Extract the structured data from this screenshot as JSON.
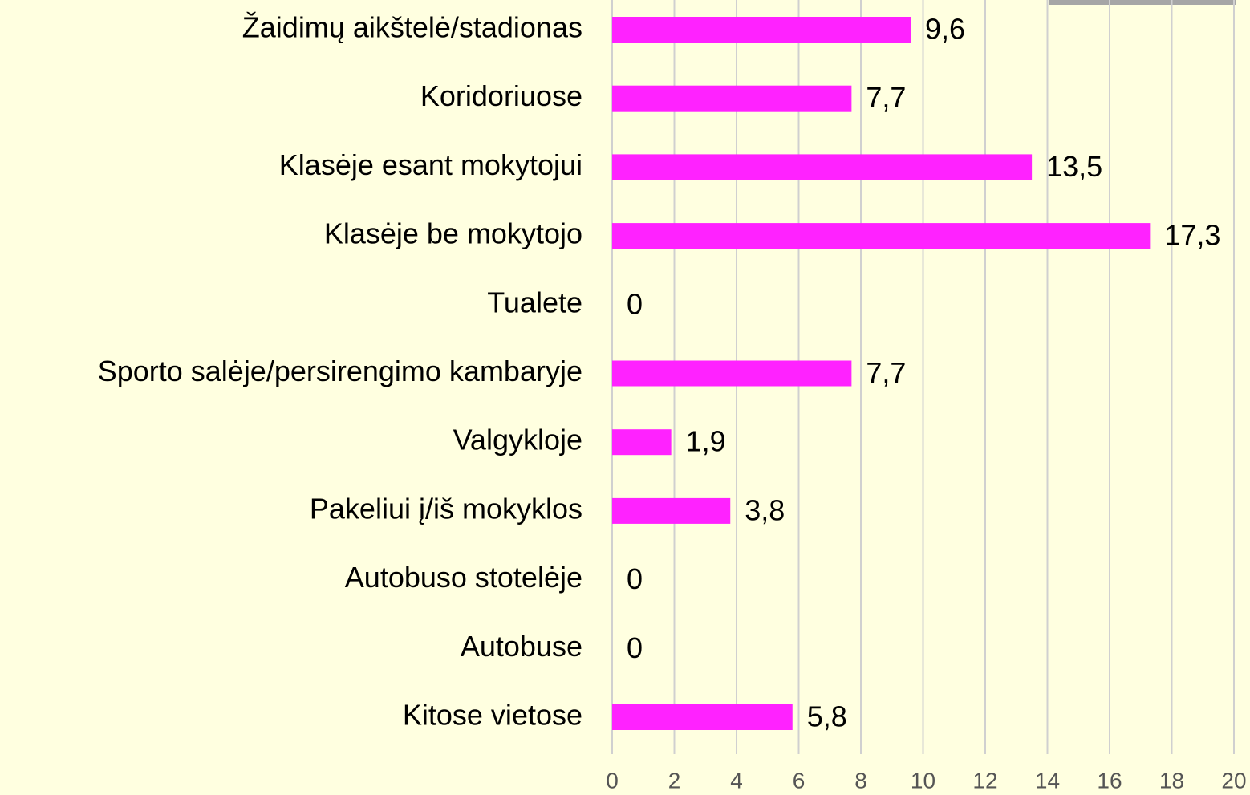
{
  "chart_data": {
    "type": "horizontal_bar",
    "categories": [
      "Žaidimų aikštelė/stadionas",
      "Koridoriuose",
      "Klasėje esant mokytojui",
      "Klasėje be mokytojo",
      "Tualete",
      "Sporto salėje/persirengimo kambaryje",
      "Valgykloje",
      "Pakeliui į/iš mokyklos",
      "Autobuso stotelėje",
      "Autobuse",
      "Kitose vietose"
    ],
    "values": [
      9.6,
      7.7,
      13.5,
      17.3,
      0,
      7.7,
      1.9,
      3.8,
      0,
      0,
      5.8
    ],
    "value_labels": [
      "9,6",
      "7,7",
      "13,5",
      "17,3",
      "0",
      "7,7",
      "1,9",
      "3,8",
      "0",
      "0",
      "5,8"
    ],
    "color": "#ff22ff",
    "xlim": [
      0,
      20
    ],
    "xticks": [
      0,
      2,
      4,
      6,
      8,
      10,
      12,
      14,
      16,
      18,
      20
    ],
    "grid": true
  }
}
